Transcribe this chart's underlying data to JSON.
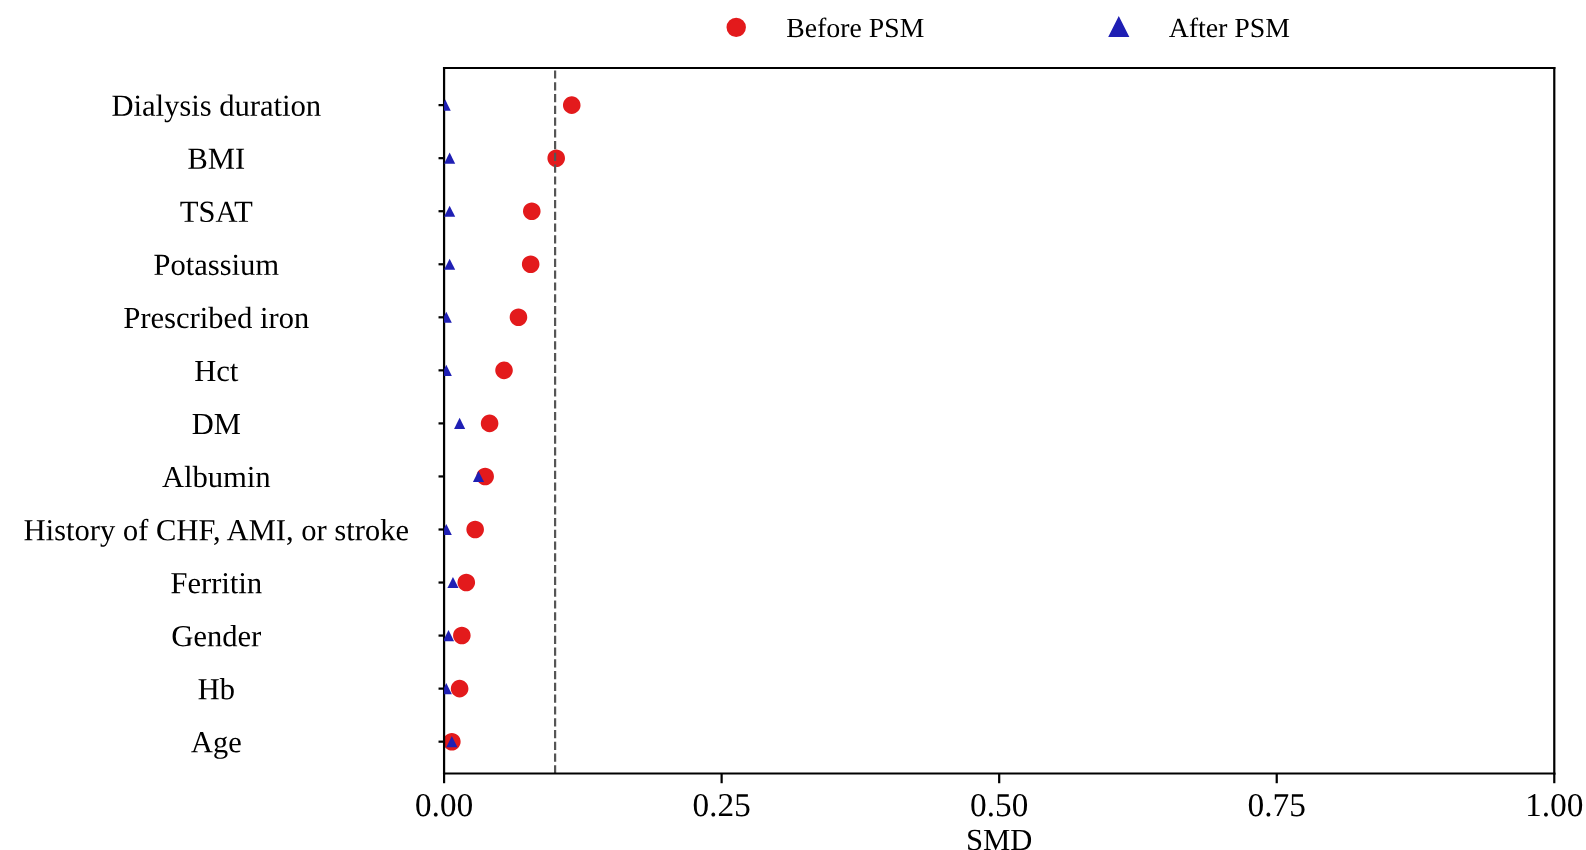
{
  "chart_data": {
    "type": "scatter",
    "orientation": "horizontal",
    "xlabel": "SMD",
    "categories": [
      "Dialysis duration",
      "BMI",
      "TSAT",
      "Potassium",
      "Prescribed iron",
      "Hct",
      "DM",
      "Albumin",
      "History of CHF, AMI, or stroke",
      "Ferritin",
      "Gender",
      "Hb",
      "Age"
    ],
    "series": [
      {
        "name": "Before PSM",
        "color": "#e31a1c",
        "marker": "circle",
        "values": [
          0.115,
          0.101,
          0.079,
          0.078,
          0.067,
          0.054,
          0.041,
          0.037,
          0.028,
          0.02,
          0.016,
          0.014,
          0.007
        ]
      },
      {
        "name": "After PSM",
        "color": "#1f1fb4",
        "marker": "triangle",
        "values": [
          0.001,
          0.005,
          0.005,
          0.005,
          0.002,
          0.002,
          0.014,
          0.031,
          0.002,
          0.008,
          0.004,
          0.002,
          0.007
        ]
      }
    ],
    "xlim": [
      0,
      1
    ],
    "xticks": [
      {
        "value": 0,
        "label": "0.00"
      },
      {
        "value": 0.25,
        "label": "0.25"
      },
      {
        "value": 0.5,
        "label": "0.50"
      },
      {
        "value": 0.75,
        "label": "0.75"
      },
      {
        "value": 1,
        "label": "1.00"
      }
    ],
    "ref_lines": [
      {
        "axis": "x",
        "value": 0.1,
        "line_style": "dashed",
        "color": "#555555"
      }
    ],
    "grid": false,
    "legend": "top"
  }
}
